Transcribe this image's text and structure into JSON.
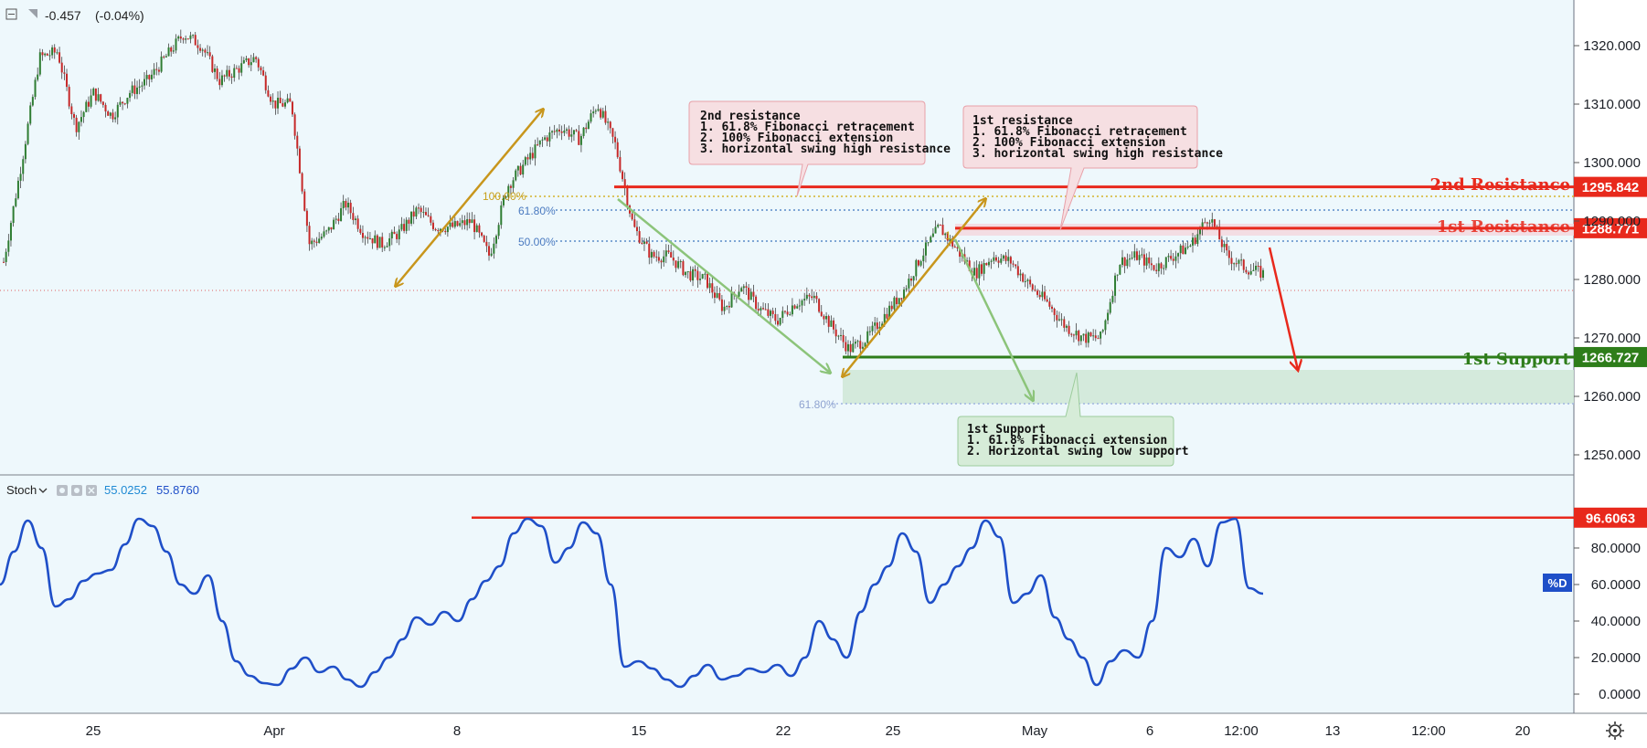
{
  "header": {
    "change_value": "-0.457",
    "change_pct": "(-0.04%)"
  },
  "stoch_header": {
    "label": "Stoch",
    "value_k": "55.0252",
    "value_d": "55.8760",
    "d_tag": "%D"
  },
  "chart_data": [
    {
      "type": "candlestick",
      "panel": "price",
      "y_ticks": [
        "1320.000",
        "1310.000",
        "1300.000",
        "1290.000",
        "1280.000",
        "1270.000",
        "1260.000",
        "1250.000"
      ],
      "ylim": [
        1250,
        1325
      ],
      "x_ticks": [
        "25",
        "Apr",
        "8",
        "15",
        "22",
        "25",
        "May",
        "6",
        "12:00",
        "13",
        "12:00",
        "20"
      ],
      "close_path": [
        1283,
        1300,
        1318,
        1319,
        1306,
        1312,
        1308,
        1312,
        1314,
        1318,
        1322,
        1320,
        1314,
        1316,
        1318,
        1310,
        1310,
        1286,
        1288,
        1293,
        1288,
        1286,
        1288,
        1292,
        1289,
        1289,
        1290,
        1284,
        1296,
        1300,
        1304,
        1306,
        1304,
        1310,
        1303,
        1289,
        1284,
        1284,
        1281,
        1280,
        1275,
        1279,
        1275,
        1273,
        1276,
        1277,
        1272,
        1268,
        1270,
        1274,
        1278,
        1284,
        1289,
        1285,
        1281,
        1284,
        1283,
        1279,
        1276,
        1272,
        1270,
        1270,
        1283,
        1284,
        1282,
        1284,
        1286,
        1291,
        1284,
        1282,
        1281
      ],
      "levels": [
        {
          "name": "2nd Resistance",
          "value": 1295.842,
          "label": "1295.842",
          "color": "#e8291c"
        },
        {
          "name": "1st Resistance",
          "value": 1288.771,
          "label": "1288.771",
          "color": "#e8291c"
        },
        {
          "name": "1st Support",
          "value": 1266.727,
          "label": "1266.727",
          "color": "#2e7d1a"
        }
      ],
      "fib_labels": [
        "100.00%",
        "61.80%",
        "50.00%",
        "61.80%",
        "1"
      ],
      "annotations": [
        {
          "title": "2nd resistance",
          "lines": [
            "1. 61.8% Fibonacci retracement",
            "2. 100% Fibonacci extension",
            "3. horizontal swing high resistance"
          ]
        },
        {
          "title": "1st resistance",
          "lines": [
            "1. 61.8% Fibonacci retracement",
            "2. 100% Fibonacci extension",
            "3. horizontal swing high resistance"
          ]
        },
        {
          "title": "1st Support",
          "lines": [
            "1. 61.8% Fibonacci extension",
            "2. Horizontal swing low support"
          ]
        }
      ],
      "colors": {
        "up": "#2e7d32",
        "down": "#c62828",
        "resistance": "#e8291c",
        "support": "#2e7d1a",
        "arrow_gold": "#c8961c",
        "arrow_green": "#8cc47a"
      }
    },
    {
      "type": "line",
      "panel": "stochastic",
      "y_ticks": [
        "96.6063",
        "80.0000",
        "60.0000",
        "40.0000",
        "20.0000",
        "0.0000"
      ],
      "ylim": [
        -5,
        105
      ],
      "level": {
        "value": 96.6063,
        "label": "96.6063",
        "color": "#e8291c"
      },
      "values": [
        60,
        78,
        95,
        80,
        48,
        52,
        62,
        66,
        68,
        82,
        96,
        92,
        78,
        60,
        55,
        65,
        40,
        18,
        10,
        6,
        5,
        14,
        20,
        12,
        15,
        8,
        4,
        12,
        20,
        30,
        42,
        38,
        45,
        40,
        52,
        62,
        70,
        88,
        96,
        92,
        72,
        80,
        94,
        88,
        60,
        15,
        18,
        14,
        8,
        4,
        10,
        16,
        8,
        10,
        14,
        12,
        16,
        10,
        20,
        40,
        30,
        20,
        45,
        60,
        70,
        88,
        78,
        50,
        60,
        70,
        80,
        95,
        86,
        50,
        55,
        65,
        42,
        30,
        20,
        5,
        18,
        24,
        20,
        40,
        80,
        75,
        85,
        70,
        94,
        96,
        58,
        55
      ],
      "line_color": "#1f4fc8"
    }
  ]
}
